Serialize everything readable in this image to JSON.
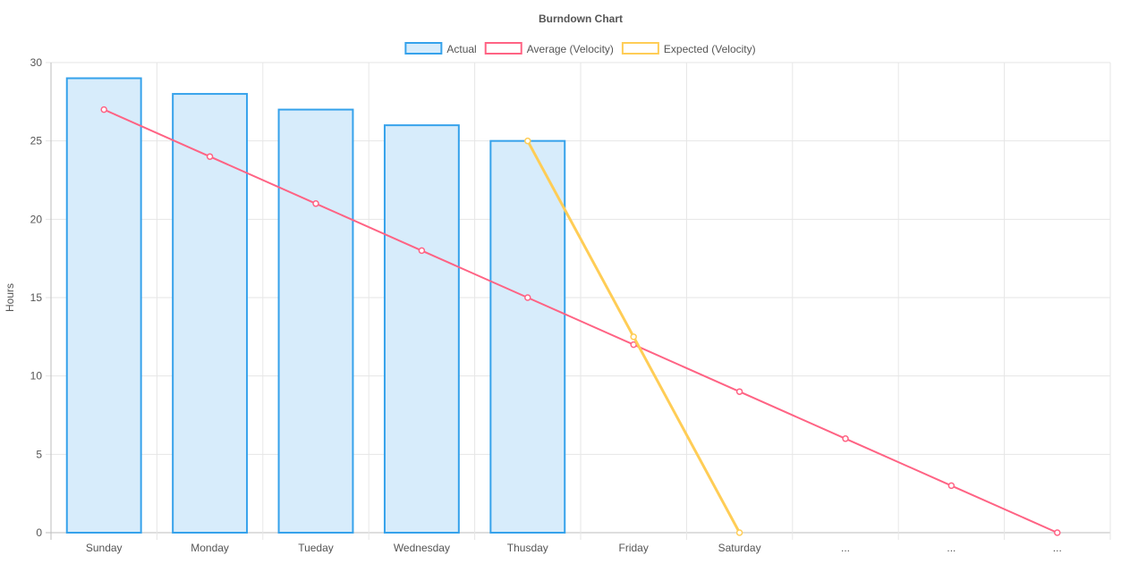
{
  "chart_data": {
    "type": "bar",
    "title": "Burndown Chart",
    "xlabel": "",
    "ylabel": "Hours",
    "ylim": [
      0,
      30
    ],
    "yticks": [
      0,
      5,
      10,
      15,
      20,
      25,
      30
    ],
    "grid": true,
    "legend_position": "top",
    "categories": [
      "Sunday",
      "Monday",
      "Tueday",
      "Wednesday",
      "Thusday",
      "Friday",
      "Saturday",
      "...",
      "...",
      "..."
    ],
    "series": [
      {
        "name": "Actual",
        "kind": "bar",
        "color": "#36a2eb",
        "fill": "#d7ecfb",
        "values": [
          29,
          28,
          27,
          26,
          25,
          null,
          null,
          null,
          null,
          null
        ]
      },
      {
        "name": "Average (Velocity)",
        "kind": "line",
        "color": "#ff6384",
        "values": [
          27,
          24,
          21,
          18,
          15,
          12,
          9,
          6,
          3,
          0
        ]
      },
      {
        "name": "Expected (Velocity)",
        "kind": "line",
        "color": "#ffcd56",
        "values": [
          null,
          null,
          null,
          null,
          25,
          12.5,
          0,
          null,
          null,
          null
        ]
      }
    ]
  }
}
